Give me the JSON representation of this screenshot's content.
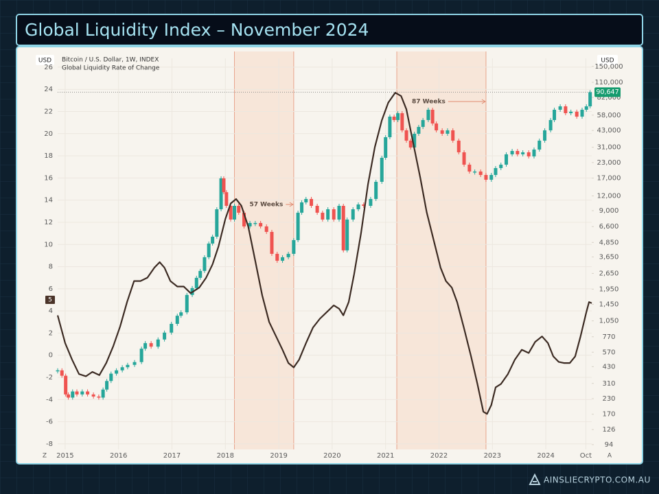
{
  "chart_data": {
    "type": "line",
    "title": "Global Liquidity Index – November 2024",
    "y_label": "USD",
    "y2_label": "USD",
    "controls": {
      "left": "Z",
      "right": "A"
    },
    "grid": true,
    "log_y2": true,
    "xlim": [
      2014.86,
      2024.86
    ],
    "xticks": [
      2015,
      2016,
      2017,
      2018,
      2019,
      2020,
      2021,
      2022,
      2023,
      2024,
      {
        "value": 2024.75,
        "label": "Oct"
      }
    ],
    "ylim": [
      -8.5,
      26.8
    ],
    "yticks": [
      -8,
      -6,
      -4,
      -2,
      0,
      2,
      4,
      6,
      8,
      10,
      12,
      14,
      16,
      18,
      20,
      22,
      24,
      26
    ],
    "y2lim": [
      85.6,
      175600
    ],
    "y2ticks": [
      94,
      126,
      170,
      230,
      310,
      430,
      570,
      770,
      {
        "value": 1050,
        "label": "1,050"
      },
      {
        "value": 1450,
        "label": "1,450"
      },
      {
        "value": 1950,
        "label": "1,950"
      },
      {
        "value": 2650,
        "label": "2,650"
      },
      {
        "value": 3650,
        "label": "3,650"
      },
      {
        "value": 4850,
        "label": "4,850"
      },
      {
        "value": 6600,
        "label": "6,600"
      },
      {
        "value": 9000,
        "label": "9,000"
      },
      {
        "value": 12000,
        "label": "12,000"
      },
      {
        "value": 17000,
        "label": "17,000"
      },
      {
        "value": 23000,
        "label": "23,000"
      },
      {
        "value": 31000,
        "label": "31,000"
      },
      {
        "value": 43000,
        "label": "43,000"
      },
      {
        "value": 58000,
        "label": "58,000"
      },
      {
        "value": 82000,
        "label": "82,000"
      },
      {
        "value": 110000,
        "label": "110,000"
      },
      {
        "value": 150000,
        "label": "150,000"
      }
    ],
    "y_marker": 5,
    "y2_marker": {
      "value": 90647,
      "label": "90,647"
    },
    "spans": [
      {
        "start": 2018.17,
        "end": 2019.28,
        "label": "57 Weeks"
      },
      {
        "start": 2021.21,
        "end": 2022.88,
        "label": "87 Weeks"
      }
    ],
    "series": [
      {
        "name": "Global Liquidity Rate of Change",
        "color": "#3b2a22",
        "axis": "y",
        "x": [
          2014.86,
          2015.0,
          2015.13,
          2015.26,
          2015.39,
          2015.51,
          2015.64,
          2015.77,
          2015.9,
          2016.03,
          2016.16,
          2016.29,
          2016.41,
          2016.54,
          2016.67,
          2016.77,
          2016.86,
          2016.97,
          2017.1,
          2017.22,
          2017.35,
          2017.51,
          2017.64,
          2017.76,
          2017.87,
          2018.0,
          2018.1,
          2018.2,
          2018.3,
          2018.43,
          2018.56,
          2018.69,
          2018.82,
          2018.95,
          2019.07,
          2019.18,
          2019.28,
          2019.38,
          2019.51,
          2019.64,
          2019.77,
          2019.9,
          2020.03,
          2020.13,
          2020.21,
          2020.31,
          2020.41,
          2020.54,
          2020.67,
          2020.8,
          2020.93,
          2021.05,
          2021.18,
          2021.29,
          2021.39,
          2021.52,
          2021.65,
          2021.77,
          2021.9,
          2022.03,
          2022.13,
          2022.24,
          2022.34,
          2022.47,
          2022.6,
          2022.72,
          2022.83,
          2022.9,
          2022.98,
          2023.06,
          2023.16,
          2023.29,
          2023.42,
          2023.55,
          2023.68,
          2023.8,
          2023.93,
          2024.04,
          2024.14,
          2024.24,
          2024.34,
          2024.45,
          2024.55,
          2024.65,
          2024.76,
          2024.81,
          2024.86
        ],
        "values": [
          3.6,
          1.1,
          -0.4,
          -1.7,
          -1.9,
          -1.5,
          -1.8,
          -0.7,
          0.8,
          2.6,
          4.8,
          6.7,
          6.7,
          7.0,
          7.9,
          8.4,
          7.9,
          6.7,
          6.2,
          6.2,
          5.6,
          6.1,
          7.0,
          8.2,
          9.8,
          12.3,
          13.7,
          14.1,
          13.5,
          11.6,
          8.5,
          5.4,
          3.0,
          1.7,
          0.5,
          -0.7,
          -1.1,
          -0.4,
          1.1,
          2.5,
          3.3,
          3.9,
          4.5,
          4.2,
          3.6,
          4.8,
          7.3,
          11.0,
          15.4,
          18.8,
          21.2,
          22.8,
          23.7,
          23.4,
          22.2,
          19.1,
          16.0,
          12.9,
          10.4,
          7.9,
          6.7,
          6.1,
          4.8,
          2.4,
          -0.1,
          -2.6,
          -5.1,
          -5.3,
          -4.5,
          -2.9,
          -2.6,
          -1.7,
          -0.4,
          0.5,
          0.2,
          1.2,
          1.7,
          1.1,
          -0.1,
          -0.6,
          -0.7,
          -0.7,
          -0.1,
          1.7,
          3.9,
          4.8,
          4.7
        ]
      },
      {
        "name": "Bitcoin / U.S. Dollar, 1W, INDEX",
        "color": "#26a69a",
        "down_color": "#ef5350",
        "axis": "y2",
        "x": [
          2014.86,
          2014.94,
          2015.01,
          2015.06,
          2015.14,
          2015.22,
          2015.32,
          2015.42,
          2015.53,
          2015.63,
          2015.71,
          2015.78,
          2015.86,
          2015.96,
          2016.07,
          2016.17,
          2016.3,
          2016.43,
          2016.5,
          2016.61,
          2016.74,
          2016.86,
          2016.99,
          2017.1,
          2017.17,
          2017.28,
          2017.38,
          2017.46,
          2017.53,
          2017.61,
          2017.69,
          2017.76,
          2017.84,
          2017.92,
          2017.97,
          2018.02,
          2018.1,
          2018.17,
          2018.25,
          2018.35,
          2018.46,
          2018.56,
          2018.66,
          2018.77,
          2018.87,
          2018.97,
          2019.07,
          2019.18,
          2019.28,
          2019.36,
          2019.43,
          2019.51,
          2019.61,
          2019.72,
          2019.82,
          2019.92,
          2020.03,
          2020.13,
          2020.21,
          2020.28,
          2020.39,
          2020.49,
          2020.59,
          2020.72,
          2020.82,
          2020.93,
          2021.0,
          2021.08,
          2021.16,
          2021.23,
          2021.31,
          2021.39,
          2021.47,
          2021.54,
          2021.62,
          2021.7,
          2021.8,
          2021.88,
          2021.95,
          2022.06,
          2022.16,
          2022.26,
          2022.37,
          2022.47,
          2022.57,
          2022.67,
          2022.78,
          2022.88,
          2022.98,
          2023.06,
          2023.16,
          2023.26,
          2023.37,
          2023.47,
          2023.57,
          2023.68,
          2023.78,
          2023.88,
          2023.98,
          2024.09,
          2024.16,
          2024.27,
          2024.37,
          2024.47,
          2024.58,
          2024.68,
          2024.76,
          2024.83
        ],
        "values": [
          400,
          360,
          250,
          235,
          265,
          250,
          265,
          250,
          240,
          235,
          275,
          325,
          375,
          400,
          425,
          445,
          470,
          610,
          680,
          635,
          730,
          835,
          990,
          1160,
          1240,
          1740,
          1990,
          2430,
          2780,
          3630,
          4740,
          5420,
          9250,
          16900,
          12900,
          9890,
          7570,
          9890,
          8650,
          6620,
          7080,
          7080,
          6620,
          5950,
          3880,
          3390,
          3630,
          3880,
          5070,
          8650,
          10580,
          11310,
          9890,
          8650,
          7570,
          9250,
          7570,
          9890,
          4150,
          7570,
          9250,
          10160,
          9890,
          11310,
          15800,
          25240,
          37710,
          56340,
          52700,
          60240,
          43110,
          35270,
          30850,
          40330,
          46100,
          52700,
          64420,
          49290,
          43110,
          40330,
          43110,
          35270,
          28090,
          22080,
          19310,
          19310,
          18060,
          16450,
          18060,
          20650,
          22080,
          27000,
          28850,
          27000,
          28090,
          25930,
          29640,
          35270,
          43110,
          52700,
          64420,
          68850,
          60240,
          62000,
          56340,
          64420,
          68850,
          90647
        ]
      }
    ]
  },
  "footer": "AINSLIECRYPTO.COM.AU"
}
